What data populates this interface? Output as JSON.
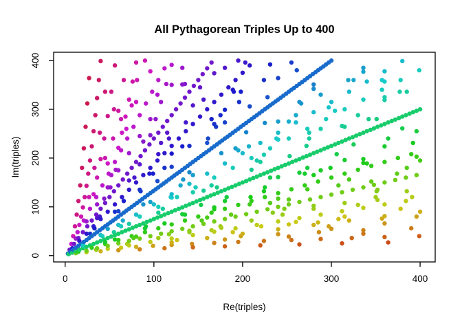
{
  "chart_data": {
    "type": "scatter",
    "title": "All Pythagorean Triples Up to 400",
    "xlabel": "Re(triples)",
    "ylabel": "Im(triples)",
    "x_ticks": [
      0,
      100,
      200,
      300,
      400
    ],
    "y_ticks": [
      0,
      100,
      200,
      300,
      400
    ],
    "x_tick_labels": [
      "0",
      "100",
      "200",
      "300",
      "400"
    ],
    "y_tick_labels": [
      "0",
      "100",
      "200",
      "300",
      "400"
    ],
    "xlim": [
      -13,
      417
    ],
    "ylim": [
      -13,
      417
    ],
    "grid": false,
    "legend": false,
    "background": "#ffffff",
    "box_color": "#000000",
    "marker": "filled-circle",
    "data_rule": {
      "description": "Every integer pair (a, b) plotted as complex point a + bi where a^2 + b^2 is a perfect square (all Pythagorean triples including non-primitive multiples and both leg orders); produces the solid blue 3-4-5 multiples line to (300,400) and the green 4-3-5 multiples line to (400,300)",
      "min_leg": 1,
      "max_leg": 400
    },
    "point_color_model": {
      "space": "hsv",
      "hue_rule": "hue_degrees = hue_factor * atan2(Im, Re) in degrees",
      "hue_factor": 4,
      "saturation": 0.88,
      "value": 0.8
    }
  }
}
